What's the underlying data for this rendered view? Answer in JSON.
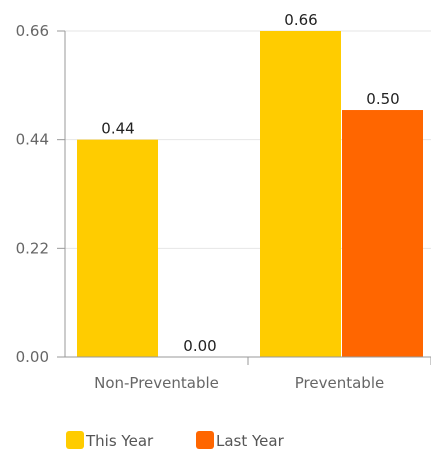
{
  "chart_data": {
    "type": "bar",
    "categories": [
      "Non-Preventable",
      "Preventable"
    ],
    "series": [
      {
        "name": "This Year",
        "values": [
          0.44,
          0.66
        ],
        "color": "#FFCC00"
      },
      {
        "name": "Last Year",
        "values": [
          0.0,
          0.5
        ],
        "color": "#FF6600"
      }
    ],
    "data_labels": [
      [
        "0.44",
        "0.66"
      ],
      [
        "0.00",
        "0.50"
      ]
    ],
    "y_ticks": [
      0.0,
      0.22,
      0.44,
      0.66
    ],
    "y_tick_labels": [
      "0.00",
      "0.22",
      "0.44",
      "0.66"
    ],
    "ylim": [
      0,
      0.66
    ],
    "grid": true,
    "legend_position": "bottom-left",
    "title": "",
    "xlabel": "",
    "ylabel": ""
  }
}
